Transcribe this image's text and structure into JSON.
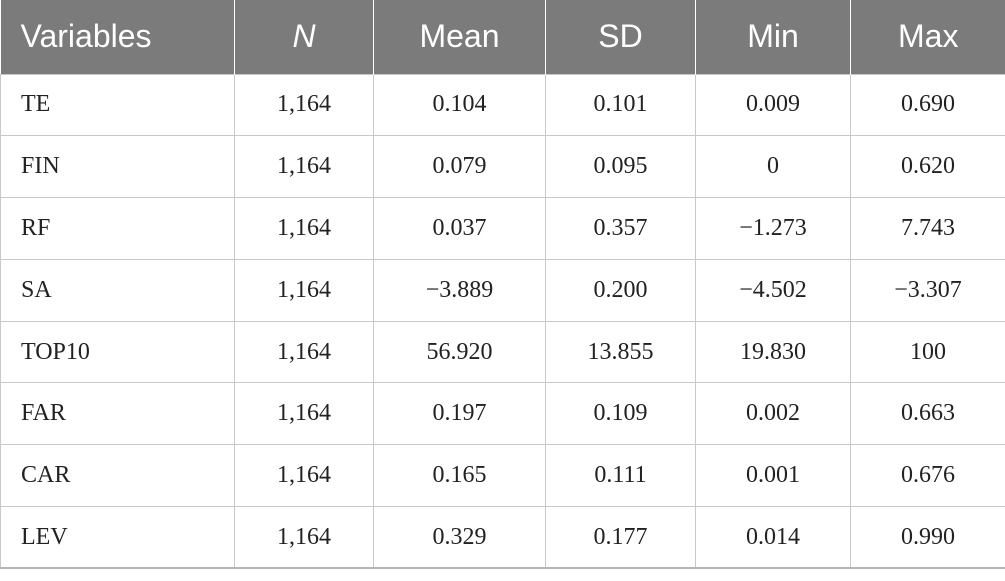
{
  "table": {
    "headers": [
      "Variables",
      "N",
      "Mean",
      "SD",
      "Min",
      "Max"
    ],
    "rows": [
      [
        "TE",
        "1,164",
        "0.104",
        "0.101",
        "0.009",
        "0.690"
      ],
      [
        "FIN",
        "1,164",
        "0.079",
        "0.095",
        "0",
        "0.620"
      ],
      [
        "RF",
        "1,164",
        "0.037",
        "0.357",
        "−1.273",
        "7.743"
      ],
      [
        "SA",
        "1,164",
        "−3.889",
        "0.200",
        "−4.502",
        "−3.307"
      ],
      [
        "TOP10",
        "1,164",
        "56.920",
        "13.855",
        "19.830",
        "100"
      ],
      [
        "FAR",
        "1,164",
        "0.197",
        "0.109",
        "0.002",
        "0.663"
      ],
      [
        "CAR",
        "1,164",
        "0.165",
        "0.111",
        "0.001",
        "0.676"
      ],
      [
        "LEV",
        "1,164",
        "0.329",
        "0.177",
        "0.014",
        "0.990"
      ]
    ]
  },
  "colors": {
    "header_bg": "#7b7b7b",
    "header_text": "#ffffff",
    "grid": "#c8c8c8"
  }
}
